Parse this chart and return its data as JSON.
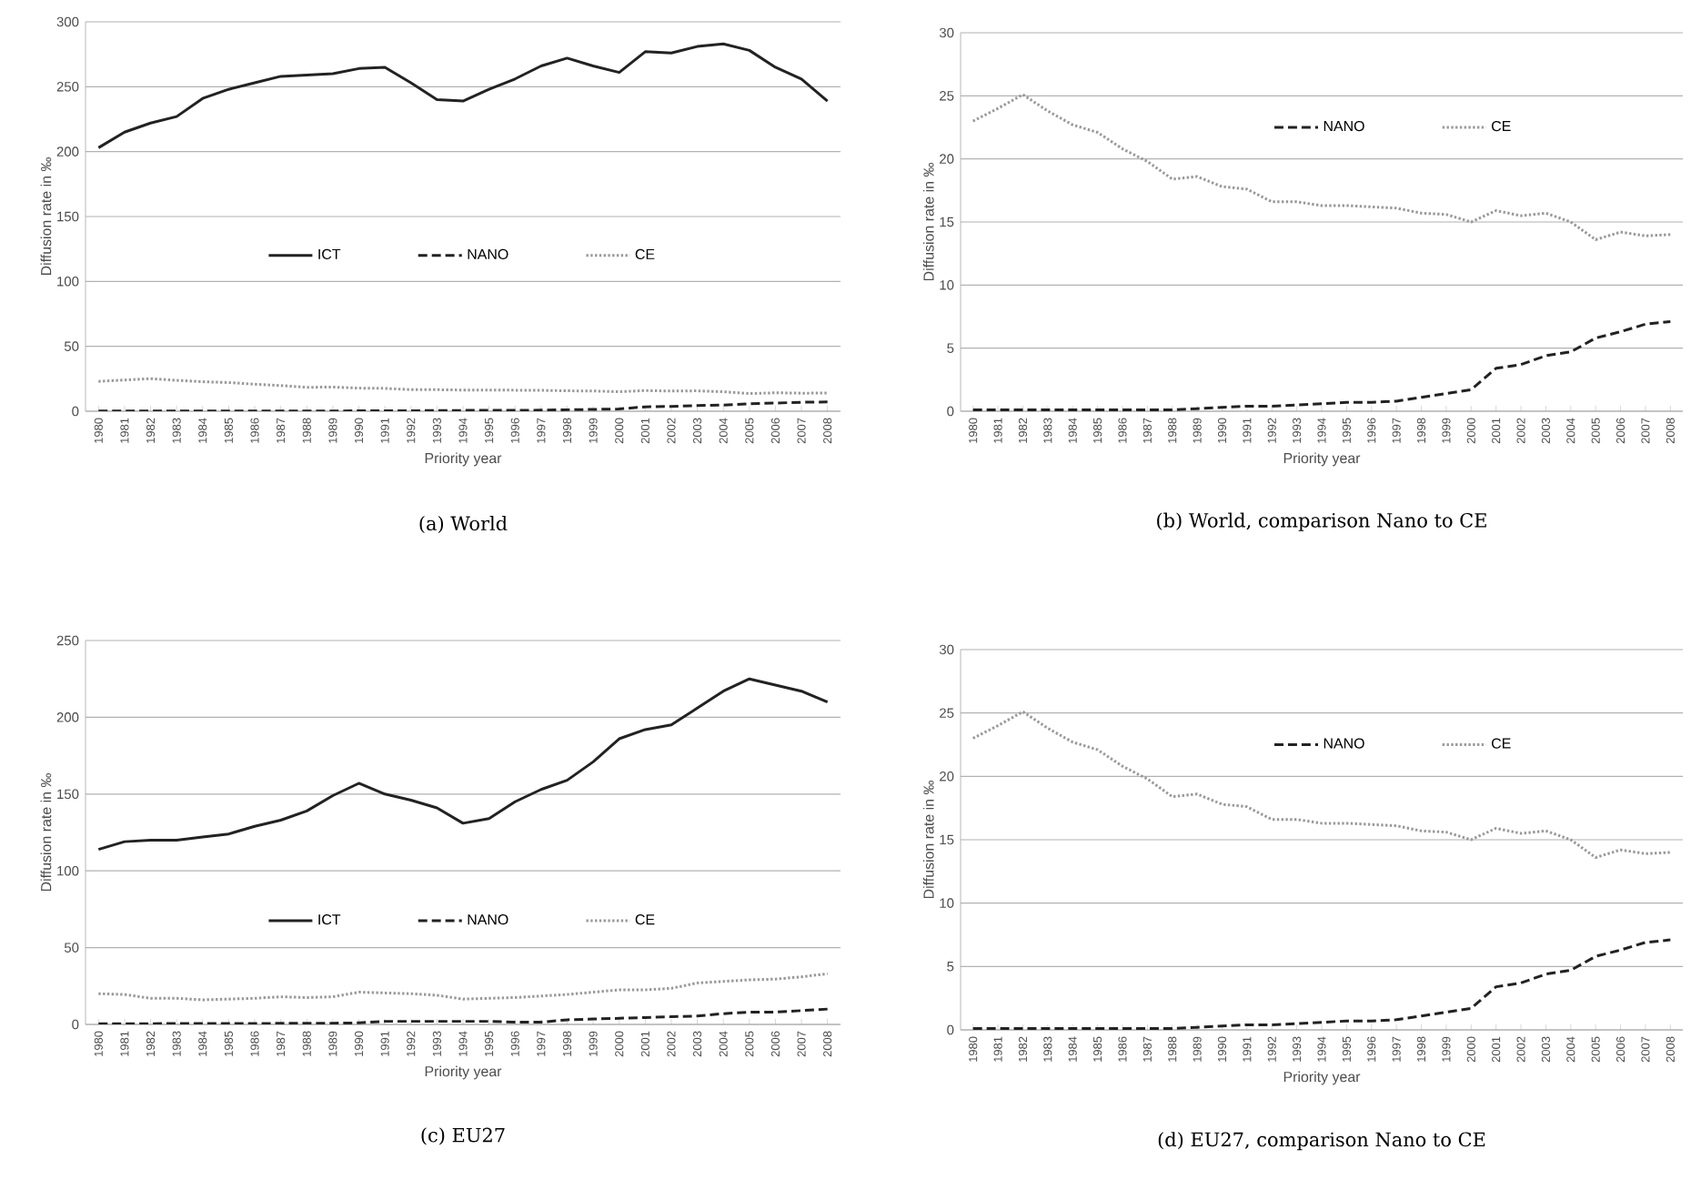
{
  "chart_data": [
    {
      "type": "line",
      "title": "(a)  World",
      "xlabel": "Priority year",
      "ylabel": "Diffusion rate in ‰",
      "categories": [
        "1980",
        "1981",
        "1982",
        "1983",
        "1984",
        "1985",
        "1986",
        "1987",
        "1988",
        "1989",
        "1990",
        "1991",
        "1992",
        "1993",
        "1994",
        "1995",
        "1996",
        "1997",
        "1998",
        "1999",
        "2000",
        "2001",
        "2002",
        "2003",
        "2004",
        "2005",
        "2006",
        "2007",
        "2008"
      ],
      "ylim": [
        0,
        300
      ],
      "yticks": [
        0,
        50,
        100,
        150,
        200,
        250,
        300
      ],
      "grid": "y",
      "legend": "center",
      "series": [
        {
          "name": "ICT",
          "color": "#222222",
          "line_style": "solid",
          "values": [
            203,
            215,
            222,
            227,
            241,
            248,
            253,
            258,
            259,
            260,
            264,
            265,
            253,
            240,
            239,
            248,
            256,
            266,
            272,
            266,
            261,
            277,
            276,
            281,
            283,
            278,
            265,
            256,
            239
          ]
        },
        {
          "name": "NANO",
          "color": "#222222",
          "line_style": "dashed",
          "values": [
            0.1,
            0.1,
            0.1,
            0.1,
            0.1,
            0.1,
            0.1,
            0.1,
            0.1,
            0.2,
            0.3,
            0.4,
            0.4,
            0.5,
            0.6,
            0.7,
            0.7,
            0.8,
            1.1,
            1.4,
            1.7,
            3.4,
            3.7,
            4.4,
            4.7,
            5.8,
            6.3,
            6.9,
            7.1
          ]
        },
        {
          "name": "CE",
          "color": "#999999",
          "line_style": "dotted",
          "values": [
            23.0,
            24.0,
            25.1,
            23.8,
            22.7,
            22.1,
            20.8,
            19.8,
            18.4,
            18.6,
            17.8,
            17.6,
            16.6,
            16.6,
            16.3,
            16.3,
            16.2,
            16.1,
            15.7,
            15.6,
            15.0,
            15.9,
            15.5,
            15.7,
            15.0,
            13.6,
            14.2,
            13.9,
            14.0
          ]
        }
      ]
    },
    {
      "type": "line",
      "title": "(b)  World, comparison Nano to CE",
      "xlabel": "Priority year",
      "ylabel": "Diffusion rate in ‰",
      "categories": [
        "1980",
        "1981",
        "1982",
        "1983",
        "1984",
        "1985",
        "1986",
        "1987",
        "1988",
        "1989",
        "1990",
        "1991",
        "1992",
        "1993",
        "1994",
        "1995",
        "1996",
        "1997",
        "1998",
        "1999",
        "2000",
        "2001",
        "2002",
        "2003",
        "2004",
        "2005",
        "2006",
        "2007",
        "2008"
      ],
      "ylim": [
        0,
        30
      ],
      "yticks": [
        0,
        5,
        10,
        15,
        20,
        25,
        30
      ],
      "grid": "y",
      "legend": "top",
      "series": [
        {
          "name": "NANO",
          "color": "#222222",
          "line_style": "dashed",
          "values": [
            0.1,
            0.1,
            0.1,
            0.1,
            0.1,
            0.1,
            0.1,
            0.1,
            0.1,
            0.2,
            0.3,
            0.4,
            0.4,
            0.5,
            0.6,
            0.7,
            0.7,
            0.8,
            1.1,
            1.4,
            1.7,
            3.4,
            3.7,
            4.4,
            4.7,
            5.8,
            6.3,
            6.9,
            7.1
          ]
        },
        {
          "name": "CE",
          "color": "#999999",
          "line_style": "dotted",
          "values": [
            23.0,
            24.0,
            25.1,
            23.8,
            22.7,
            22.1,
            20.8,
            19.8,
            18.4,
            18.6,
            17.8,
            17.6,
            16.6,
            16.6,
            16.3,
            16.3,
            16.2,
            16.1,
            15.7,
            15.6,
            15.0,
            15.9,
            15.5,
            15.7,
            15.0,
            13.6,
            14.2,
            13.9,
            14.0
          ]
        }
      ]
    },
    {
      "type": "line",
      "title": "(c)  EU27",
      "xlabel": "Priority year",
      "ylabel": "Diffusion rate in ‰",
      "categories": [
        "1980",
        "1981",
        "1982",
        "1983",
        "1984",
        "1985",
        "1986",
        "1987",
        "1988",
        "1989",
        "1990",
        "1991",
        "1992",
        "1993",
        "1994",
        "1995",
        "1996",
        "1997",
        "1998",
        "1999",
        "2000",
        "2001",
        "2002",
        "2003",
        "2004",
        "2005",
        "2006",
        "2007",
        "2008"
      ],
      "ylim": [
        0,
        250
      ],
      "yticks": [
        0,
        50,
        100,
        150,
        200,
        250
      ],
      "grid": "y",
      "legend": "bottom",
      "series": [
        {
          "name": "ICT",
          "color": "#222222",
          "line_style": "solid",
          "values": [
            114,
            119,
            120,
            120,
            122,
            124,
            129,
            133,
            139,
            149,
            157,
            150,
            146,
            141,
            131,
            134,
            145,
            153,
            159,
            171,
            186,
            192,
            195,
            206,
            217,
            225,
            221,
            217,
            210
          ]
        },
        {
          "name": "NANO",
          "color": "#222222",
          "line_style": "dashed",
          "values": [
            0.5,
            0.5,
            0.5,
            0.6,
            0.6,
            0.6,
            0.6,
            0.7,
            0.7,
            0.8,
            1,
            2,
            2,
            2,
            2,
            2,
            1.5,
            1.5,
            3,
            3.5,
            4,
            4.5,
            5,
            5.5,
            7,
            8,
            8,
            9,
            10
          ]
        },
        {
          "name": "CE",
          "color": "#999999",
          "line_style": "dotted",
          "values": [
            20,
            19.5,
            17,
            17,
            16,
            16.5,
            17,
            18,
            17.5,
            18,
            21,
            20.5,
            20,
            19,
            16.5,
            17,
            17.5,
            18.5,
            19.5,
            21,
            22.5,
            22.5,
            23.5,
            27,
            28,
            29,
            29.5,
            31,
            33
          ]
        }
      ]
    },
    {
      "type": "line",
      "title": "(d)  EU27, comparison Nano to CE",
      "xlabel": "Priority year",
      "ylabel": "Diffusion rate in ‰",
      "categories": [
        "1980",
        "1981",
        "1982",
        "1983",
        "1984",
        "1985",
        "1986",
        "1987",
        "1988",
        "1989",
        "1990",
        "1991",
        "1992",
        "1993",
        "1994",
        "1995",
        "1996",
        "1997",
        "1998",
        "1999",
        "2000",
        "2001",
        "2002",
        "2003",
        "2004",
        "2005",
        "2006",
        "2007",
        "2008"
      ],
      "ylim": [
        0,
        30
      ],
      "yticks": [
        0,
        5,
        10,
        15,
        20,
        25,
        30
      ],
      "grid": "y",
      "legend": "top",
      "series": [
        {
          "name": "NANO",
          "color": "#222222",
          "line_style": "dashed",
          "values": [
            0.1,
            0.1,
            0.1,
            0.1,
            0.1,
            0.1,
            0.1,
            0.1,
            0.1,
            0.2,
            0.3,
            0.4,
            0.4,
            0.5,
            0.6,
            0.7,
            0.7,
            0.8,
            1.1,
            1.4,
            1.7,
            3.4,
            3.7,
            4.4,
            4.7,
            5.8,
            6.3,
            6.9,
            7.1
          ]
        },
        {
          "name": "CE",
          "color": "#999999",
          "line_style": "dotted",
          "values": [
            23.0,
            24.0,
            25.1,
            23.8,
            22.7,
            22.1,
            20.8,
            19.8,
            18.4,
            18.6,
            17.8,
            17.6,
            16.6,
            16.6,
            16.3,
            16.3,
            16.2,
            16.1,
            15.7,
            15.6,
            15.0,
            15.9,
            15.5,
            15.7,
            15.0,
            13.6,
            14.2,
            13.9,
            14.0
          ]
        }
      ]
    }
  ]
}
